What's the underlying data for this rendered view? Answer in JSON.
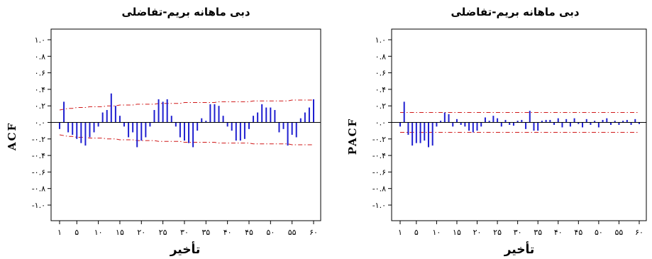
{
  "colors": {
    "bar": "#1f1fd0",
    "confidence": "#d01818",
    "zero": "#000000",
    "frame": "#000000"
  },
  "chart_data": [
    {
      "type": "bar",
      "subtype": "acf",
      "title": "دبی ماهانه بریم-تفاضلی",
      "xlabel": "تأخیر",
      "ylabel": "ACF",
      "ylim": [
        -1.0,
        1.0
      ],
      "xlim": [
        1,
        60
      ],
      "yticks": [
        1.0,
        0.8,
        0.6,
        0.4,
        0.2,
        0.0,
        -0.2,
        -0.4,
        -0.6,
        -0.8,
        -1.0
      ],
      "ytick_labels": [
        "۱.۰",
        "۰.۸",
        "۰.۶",
        "۰.۴",
        "۰.۲",
        "۰.۰",
        "-۰.۲",
        "-۰.۴",
        "-۰.۶",
        "-۰.۸",
        "-۱.۰"
      ],
      "xticks": [
        1,
        5,
        10,
        15,
        20,
        25,
        30,
        35,
        40,
        45,
        50,
        55,
        60
      ],
      "xtick_labels": [
        "۱",
        "۵",
        "۱۰",
        "۱۵",
        "۲۰",
        "۲۵",
        "۳۰",
        "۳۵",
        "۴۰",
        "۴۵",
        "۵۰",
        "۵۵",
        "۶۰"
      ],
      "lags": [
        1,
        2,
        3,
        4,
        5,
        6,
        7,
        8,
        9,
        10,
        11,
        12,
        13,
        14,
        15,
        16,
        17,
        18,
        19,
        20,
        21,
        22,
        23,
        24,
        25,
        26,
        27,
        28,
        29,
        30,
        31,
        32,
        33,
        34,
        35,
        36,
        37,
        38,
        39,
        40,
        41,
        42,
        43,
        44,
        45,
        46,
        47,
        48,
        49,
        50,
        51,
        52,
        53,
        54,
        55,
        56,
        57,
        58,
        59,
        60
      ],
      "values": [
        -0.08,
        0.25,
        -0.12,
        -0.15,
        -0.2,
        -0.25,
        -0.28,
        -0.18,
        -0.12,
        -0.05,
        0.12,
        0.15,
        0.35,
        0.2,
        0.08,
        -0.05,
        -0.18,
        -0.12,
        -0.3,
        -0.22,
        -0.18,
        -0.05,
        0.15,
        0.28,
        0.25,
        0.28,
        0.08,
        -0.05,
        -0.18,
        -0.22,
        -0.25,
        -0.3,
        -0.1,
        0.05,
        0.02,
        0.22,
        0.22,
        0.2,
        0.08,
        -0.05,
        -0.1,
        -0.22,
        -0.22,
        -0.2,
        -0.08,
        0.08,
        0.12,
        0.22,
        0.18,
        0.18,
        0.15,
        -0.12,
        -0.08,
        -0.28,
        -0.15,
        -0.18,
        0.05,
        0.12,
        0.18,
        0.28
      ],
      "confidence_upper": [
        0.15,
        0.16,
        0.17,
        0.17,
        0.18,
        0.18,
        0.18,
        0.19,
        0.19,
        0.19,
        0.19,
        0.2,
        0.2,
        0.2,
        0.21,
        0.21,
        0.21,
        0.21,
        0.22,
        0.22,
        0.22,
        0.22,
        0.22,
        0.23,
        0.23,
        0.23,
        0.23,
        0.23,
        0.23,
        0.24,
        0.24,
        0.24,
        0.24,
        0.24,
        0.24,
        0.24,
        0.24,
        0.25,
        0.25,
        0.25,
        0.25,
        0.25,
        0.25,
        0.25,
        0.25,
        0.26,
        0.26,
        0.26,
        0.26,
        0.26,
        0.26,
        0.26,
        0.26,
        0.26,
        0.27,
        0.27,
        0.27,
        0.27,
        0.27,
        0.27
      ],
      "confidence_lower": [
        -0.15,
        -0.16,
        -0.17,
        -0.17,
        -0.18,
        -0.18,
        -0.18,
        -0.19,
        -0.19,
        -0.19,
        -0.19,
        -0.2,
        -0.2,
        -0.2,
        -0.21,
        -0.21,
        -0.21,
        -0.21,
        -0.22,
        -0.22,
        -0.22,
        -0.22,
        -0.22,
        -0.23,
        -0.23,
        -0.23,
        -0.23,
        -0.23,
        -0.23,
        -0.24,
        -0.24,
        -0.24,
        -0.24,
        -0.24,
        -0.24,
        -0.24,
        -0.24,
        -0.25,
        -0.25,
        -0.25,
        -0.25,
        -0.25,
        -0.25,
        -0.25,
        -0.25,
        -0.26,
        -0.26,
        -0.26,
        -0.26,
        -0.26,
        -0.26,
        -0.26,
        -0.26,
        -0.26,
        -0.27,
        -0.27,
        -0.27,
        -0.27,
        -0.27,
        -0.27
      ],
      "grid": false
    },
    {
      "type": "bar",
      "subtype": "pacf",
      "title": "دبی ماهانه بریم-تفاضلی",
      "xlabel": "تأخیر",
      "ylabel": "PACF",
      "ylim": [
        -1.0,
        1.0
      ],
      "xlim": [
        1,
        60
      ],
      "yticks": [
        1.0,
        0.8,
        0.6,
        0.4,
        0.2,
        0.0,
        -0.2,
        -0.4,
        -0.6,
        -0.8,
        -1.0
      ],
      "ytick_labels": [
        "۱.۰",
        "۰.۸",
        "۰.۶",
        "۰.۴",
        "۰.۲",
        "۰.۰",
        "-۰.۲",
        "-۰.۴",
        "-۰.۶",
        "-۰.۸",
        "-۱.۰"
      ],
      "xticks": [
        1,
        5,
        10,
        15,
        20,
        25,
        30,
        35,
        40,
        45,
        50,
        55,
        60
      ],
      "xtick_labels": [
        "۱",
        "۵",
        "۱۰",
        "۱۵",
        "۲۰",
        "۲۵",
        "۳۰",
        "۳۵",
        "۴۰",
        "۴۵",
        "۵۰",
        "۵۵",
        "۶۰"
      ],
      "lags": [
        1,
        2,
        3,
        4,
        5,
        6,
        7,
        8,
        9,
        10,
        11,
        12,
        13,
        14,
        15,
        16,
        17,
        18,
        19,
        20,
        21,
        22,
        23,
        24,
        25,
        26,
        27,
        28,
        29,
        30,
        31,
        32,
        33,
        34,
        35,
        36,
        37,
        38,
        39,
        40,
        41,
        42,
        43,
        44,
        45,
        46,
        47,
        48,
        49,
        50,
        51,
        52,
        53,
        54,
        55,
        56,
        57,
        58,
        59,
        60
      ],
      "values": [
        -0.05,
        0.25,
        -0.15,
        -0.28,
        -0.25,
        -0.25,
        -0.22,
        -0.3,
        -0.28,
        -0.05,
        0.02,
        0.12,
        0.1,
        -0.05,
        0.04,
        -0.03,
        -0.05,
        -0.1,
        -0.12,
        -0.1,
        -0.05,
        0.06,
        0.02,
        0.08,
        0.05,
        -0.05,
        0.03,
        -0.03,
        -0.04,
        0.02,
        0.03,
        -0.08,
        0.14,
        -0.1,
        -0.1,
        0.02,
        0.03,
        0.03,
        -0.03,
        0.05,
        -0.06,
        0.04,
        -0.05,
        0.05,
        -0.02,
        -0.06,
        0.04,
        -0.03,
        0.02,
        -0.06,
        0.03,
        0.05,
        -0.03,
        0.02,
        -0.03,
        0.02,
        0.03,
        -0.03,
        0.04,
        -0.02
      ],
      "confidence_upper": [
        0.12,
        0.12,
        0.12,
        0.12,
        0.12,
        0.12,
        0.12,
        0.12,
        0.12,
        0.12,
        0.12,
        0.12,
        0.12,
        0.12,
        0.12,
        0.12,
        0.12,
        0.12,
        0.12,
        0.12,
        0.12,
        0.12,
        0.12,
        0.12,
        0.12,
        0.12,
        0.12,
        0.12,
        0.12,
        0.12,
        0.12,
        0.12,
        0.12,
        0.12,
        0.12,
        0.12,
        0.12,
        0.12,
        0.12,
        0.12,
        0.12,
        0.12,
        0.12,
        0.12,
        0.12,
        0.12,
        0.12,
        0.12,
        0.12,
        0.12,
        0.12,
        0.12,
        0.12,
        0.12,
        0.12,
        0.12,
        0.12,
        0.12,
        0.12,
        0.12
      ],
      "confidence_lower": [
        -0.12,
        -0.12,
        -0.12,
        -0.12,
        -0.12,
        -0.12,
        -0.12,
        -0.12,
        -0.12,
        -0.12,
        -0.12,
        -0.12,
        -0.12,
        -0.12,
        -0.12,
        -0.12,
        -0.12,
        -0.12,
        -0.12,
        -0.12,
        -0.12,
        -0.12,
        -0.12,
        -0.12,
        -0.12,
        -0.12,
        -0.12,
        -0.12,
        -0.12,
        -0.12,
        -0.12,
        -0.12,
        -0.12,
        -0.12,
        -0.12,
        -0.12,
        -0.12,
        -0.12,
        -0.12,
        -0.12,
        -0.12,
        -0.12,
        -0.12,
        -0.12,
        -0.12,
        -0.12,
        -0.12,
        -0.12,
        -0.12,
        -0.12,
        -0.12,
        -0.12,
        -0.12,
        -0.12,
        -0.12,
        -0.12,
        -0.12,
        -0.12,
        -0.12,
        -0.12
      ],
      "grid": false
    }
  ]
}
